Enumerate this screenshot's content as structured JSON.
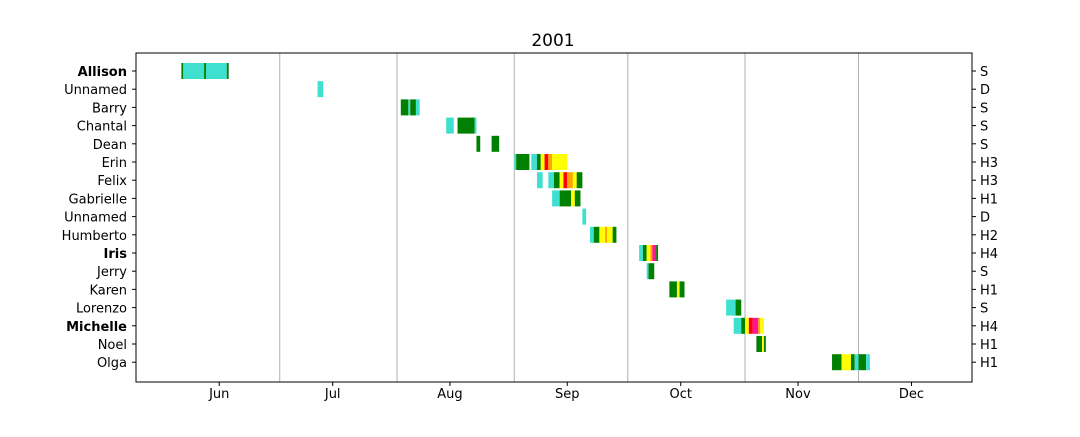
{
  "chart_data": {
    "type": "timeline",
    "title": "2001",
    "x_axis": {
      "range": [
        "2001-05-24",
        "2001-12-31"
      ],
      "month_labels": [
        {
          "label": "Jun",
          "date": "2001-06-15"
        },
        {
          "label": "Jul",
          "date": "2001-07-15"
        },
        {
          "label": "Aug",
          "date": "2001-08-15"
        },
        {
          "label": "Sep",
          "date": "2001-09-15"
        },
        {
          "label": "Oct",
          "date": "2001-10-15"
        },
        {
          "label": "Nov",
          "date": "2001-11-15"
        },
        {
          "label": "Dec",
          "date": "2001-12-15"
        }
      ],
      "month_boundaries": [
        "2001-07-01",
        "2001-08-01",
        "2001-09-01",
        "2001-10-01",
        "2001-11-01",
        "2001-12-01"
      ],
      "grid": "vertical lines at month boundaries"
    },
    "colors": {
      "D": "#40E0D0",
      "S": "#008000",
      "H1": "#FFFF00",
      "H2": "#FFA500",
      "H3": "#FF0000",
      "H4": "#FF1493"
    },
    "storms": [
      {
        "name": "Allison",
        "bold": true,
        "category": "S",
        "segments": [
          {
            "start": "2001-06-05",
            "end": "2001-06-05.5",
            "stage": "S"
          },
          {
            "start": "2001-06-05.5",
            "end": "2001-06-11",
            "stage": "D"
          },
          {
            "start": "2001-06-11",
            "end": "2001-06-11.5",
            "stage": "S"
          },
          {
            "start": "2001-06-11.5",
            "end": "2001-06-17",
            "stage": "D"
          },
          {
            "start": "2001-06-17",
            "end": "2001-06-17.5",
            "stage": "S"
          }
        ]
      },
      {
        "name": "Unnamed",
        "bold": false,
        "category": "D",
        "segments": [
          {
            "start": "2001-07-11",
            "end": "2001-07-12.5",
            "stage": "D"
          }
        ]
      },
      {
        "name": "Barry",
        "bold": false,
        "category": "S",
        "segments": [
          {
            "start": "2001-08-02",
            "end": "2001-08-04",
            "stage": "S"
          },
          {
            "start": "2001-08-04",
            "end": "2001-08-04.5",
            "stage": "D"
          },
          {
            "start": "2001-08-04.5",
            "end": "2001-08-06",
            "stage": "S"
          },
          {
            "start": "2001-08-06",
            "end": "2001-08-07",
            "stage": "D"
          }
        ]
      },
      {
        "name": "Chantal",
        "bold": false,
        "category": "S",
        "segments": [
          {
            "start": "2001-08-14",
            "end": "2001-08-16",
            "stage": "D"
          },
          {
            "start": "2001-08-17",
            "end": "2001-08-21.5",
            "stage": "S"
          },
          {
            "start": "2001-08-21.5",
            "end": "2001-08-22",
            "stage": "D"
          }
        ]
      },
      {
        "name": "Dean",
        "bold": false,
        "category": "S",
        "segments": [
          {
            "start": "2001-08-22",
            "end": "2001-08-23",
            "stage": "S"
          },
          {
            "start": "2001-08-26",
            "end": "2001-08-28",
            "stage": "S"
          }
        ]
      },
      {
        "name": "Erin",
        "bold": false,
        "category": "H3",
        "segments": [
          {
            "start": "2001-09-01",
            "end": "2001-09-01.5",
            "stage": "D"
          },
          {
            "start": "2001-09-01.5",
            "end": "2001-09-05",
            "stage": "S"
          },
          {
            "start": "2001-09-05.5",
            "end": "2001-09-07",
            "stage": "D"
          },
          {
            "start": "2001-09-07",
            "end": "2001-09-08",
            "stage": "S"
          },
          {
            "start": "2001-09-08",
            "end": "2001-09-09",
            "stage": "H1"
          },
          {
            "start": "2001-09-09",
            "end": "2001-09-10",
            "stage": "H3"
          },
          {
            "start": "2001-09-10",
            "end": "2001-09-11",
            "stage": "H2"
          },
          {
            "start": "2001-09-11",
            "end": "2001-09-15",
            "stage": "H1"
          }
        ]
      },
      {
        "name": "Felix",
        "bold": false,
        "category": "H3",
        "segments": [
          {
            "start": "2001-09-07",
            "end": "2001-09-08.5",
            "stage": "D"
          },
          {
            "start": "2001-09-10",
            "end": "2001-09-11.5",
            "stage": "D"
          },
          {
            "start": "2001-09-11.5",
            "end": "2001-09-13",
            "stage": "S"
          },
          {
            "start": "2001-09-13",
            "end": "2001-09-14",
            "stage": "H1"
          },
          {
            "start": "2001-09-14",
            "end": "2001-09-15",
            "stage": "H3"
          },
          {
            "start": "2001-09-15",
            "end": "2001-09-16.5",
            "stage": "H2"
          },
          {
            "start": "2001-09-16.5",
            "end": "2001-09-17.5",
            "stage": "H1"
          },
          {
            "start": "2001-09-17.5",
            "end": "2001-09-19",
            "stage": "S"
          }
        ]
      },
      {
        "name": "Gabrielle",
        "bold": false,
        "category": "H1",
        "segments": [
          {
            "start": "2001-09-11",
            "end": "2001-09-13",
            "stage": "D"
          },
          {
            "start": "2001-09-13",
            "end": "2001-09-16",
            "stage": "S"
          },
          {
            "start": "2001-09-16",
            "end": "2001-09-17",
            "stage": "H1"
          },
          {
            "start": "2001-09-17",
            "end": "2001-09-18.5",
            "stage": "S"
          }
        ]
      },
      {
        "name": "Unnamed",
        "bold": false,
        "category": "D",
        "segments": [
          {
            "start": "2001-09-19",
            "end": "2001-09-20",
            "stage": "D"
          }
        ]
      },
      {
        "name": "Humberto",
        "bold": false,
        "category": "H2",
        "segments": [
          {
            "start": "2001-09-21",
            "end": "2001-09-22",
            "stage": "D"
          },
          {
            "start": "2001-09-22",
            "end": "2001-09-23.5",
            "stage": "S"
          },
          {
            "start": "2001-09-23.5",
            "end": "2001-09-27",
            "stage": "H1"
          },
          {
            "start": "2001-09-25",
            "end": "2001-09-25.5",
            "stage": "H2"
          },
          {
            "start": "2001-09-27",
            "end": "2001-09-28",
            "stage": "S"
          }
        ]
      },
      {
        "name": "Iris",
        "bold": true,
        "category": "H4",
        "segments": [
          {
            "start": "2001-10-04",
            "end": "2001-10-05",
            "stage": "D"
          },
          {
            "start": "2001-10-05",
            "end": "2001-10-06",
            "stage": "S"
          },
          {
            "start": "2001-10-06",
            "end": "2001-10-07",
            "stage": "H1"
          },
          {
            "start": "2001-10-07",
            "end": "2001-10-07.5",
            "stage": "H2"
          },
          {
            "start": "2001-10-07.5",
            "end": "2001-10-08.5",
            "stage": "H4"
          },
          {
            "start": "2001-10-08.5",
            "end": "2001-10-09",
            "stage": "S"
          }
        ]
      },
      {
        "name": "Jerry",
        "bold": false,
        "category": "S",
        "segments": [
          {
            "start": "2001-10-06",
            "end": "2001-10-06.5",
            "stage": "D"
          },
          {
            "start": "2001-10-06.5",
            "end": "2001-10-08",
            "stage": "S"
          }
        ]
      },
      {
        "name": "Karen",
        "bold": false,
        "category": "H1",
        "segments": [
          {
            "start": "2001-10-12",
            "end": "2001-10-14",
            "stage": "S"
          },
          {
            "start": "2001-10-14",
            "end": "2001-10-14.7",
            "stage": "H1"
          },
          {
            "start": "2001-10-14.7",
            "end": "2001-10-16",
            "stage": "S"
          }
        ]
      },
      {
        "name": "Lorenzo",
        "bold": false,
        "category": "S",
        "segments": [
          {
            "start": "2001-10-27",
            "end": "2001-10-29.5",
            "stage": "D"
          },
          {
            "start": "2001-10-29.5",
            "end": "2001-10-31",
            "stage": "S"
          }
        ]
      },
      {
        "name": "Michelle",
        "bold": true,
        "category": "H4",
        "segments": [
          {
            "start": "2001-10-29",
            "end": "2001-10-31",
            "stage": "D"
          },
          {
            "start": "2001-10-31",
            "end": "2001-11-01",
            "stage": "S"
          },
          {
            "start": "2001-11-01",
            "end": "2001-11-02",
            "stage": "H1"
          },
          {
            "start": "2001-11-02",
            "end": "2001-11-03",
            "stage": "H3"
          },
          {
            "start": "2001-11-03",
            "end": "2001-11-04.5",
            "stage": "H4"
          },
          {
            "start": "2001-11-04.5",
            "end": "2001-11-05",
            "stage": "H2"
          },
          {
            "start": "2001-11-05",
            "end": "2001-11-06",
            "stage": "H1"
          }
        ]
      },
      {
        "name": "Noel",
        "bold": false,
        "category": "H1",
        "segments": [
          {
            "start": "2001-11-04",
            "end": "2001-11-05.5",
            "stage": "S"
          },
          {
            "start": "2001-11-05.5",
            "end": "2001-11-06",
            "stage": "H1"
          },
          {
            "start": "2001-11-06",
            "end": "2001-11-06.5",
            "stage": "S"
          }
        ]
      },
      {
        "name": "Olga",
        "bold": false,
        "category": "H1",
        "segments": [
          {
            "start": "2001-11-24",
            "end": "2001-11-26.5",
            "stage": "S"
          },
          {
            "start": "2001-11-26.5",
            "end": "2001-11-29",
            "stage": "H1"
          },
          {
            "start": "2001-11-29",
            "end": "2001-11-30",
            "stage": "S"
          },
          {
            "start": "2001-11-30",
            "end": "2001-12-01",
            "stage": "D"
          },
          {
            "start": "2001-12-01",
            "end": "2001-12-03",
            "stage": "S"
          },
          {
            "start": "2001-12-03",
            "end": "2001-12-04",
            "stage": "D"
          }
        ]
      }
    ]
  }
}
